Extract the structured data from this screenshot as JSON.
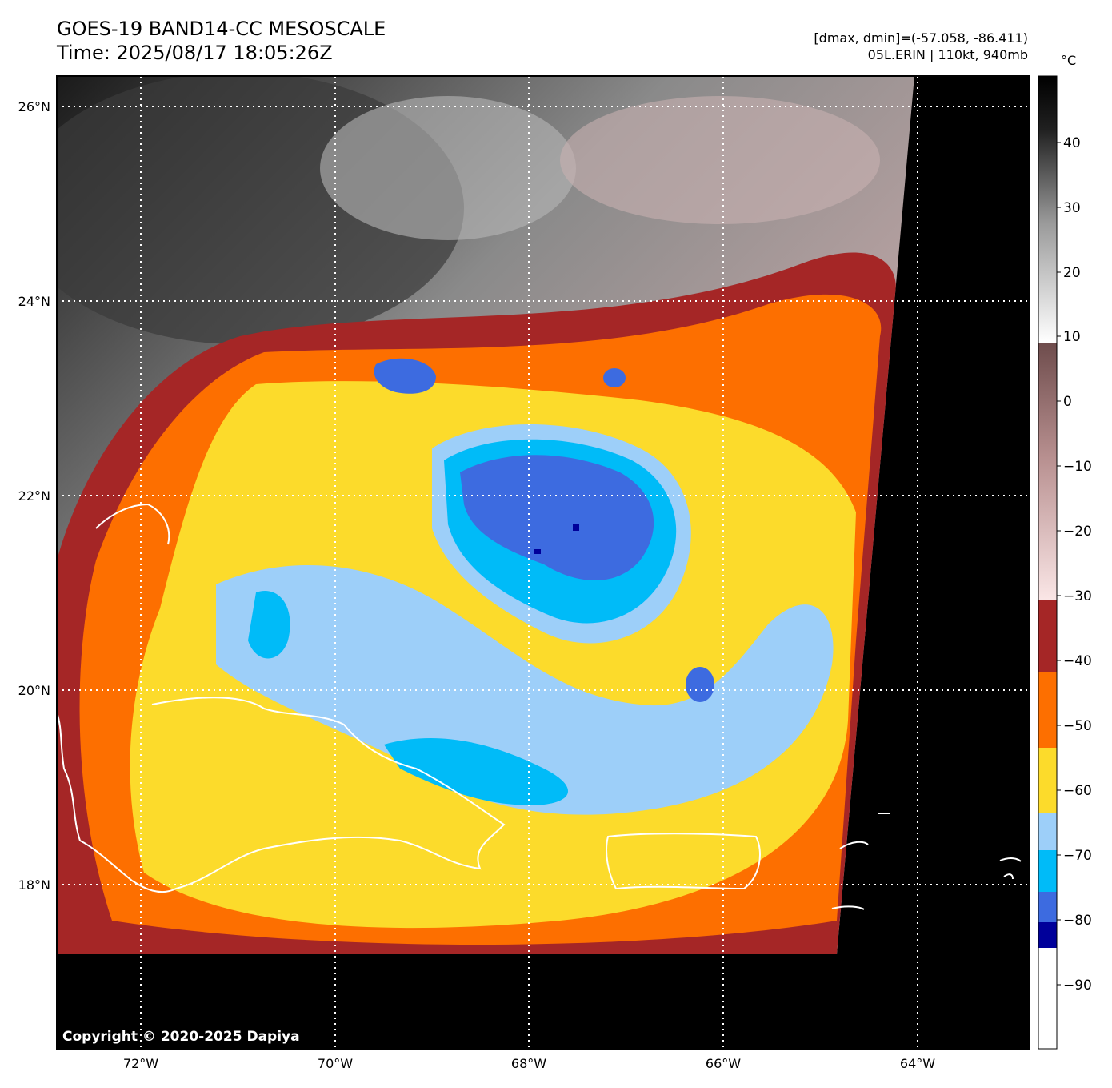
{
  "header": {
    "title_line1": "GOES-19 BAND14-CC MESOSCALE",
    "title_line2": "Time: 2025/08/17 18:05:26Z",
    "info_line1": "[dmax, dmin]=(-57.058, -86.411)",
    "info_line2": "05L.ERIN | 110kt, 940mb"
  },
  "map": {
    "lat_labels": [
      "26°N",
      "24°N",
      "22°N",
      "20°N",
      "18°N"
    ],
    "lon_labels": [
      "72°W",
      "70°W",
      "68°W",
      "66°W",
      "64°W"
    ],
    "copyright": "Copyright © 2020-2025 Dapiya"
  },
  "colorbar": {
    "unit": "°C",
    "ticks": [
      "40",
      "30",
      "20",
      "10",
      "0",
      "−10",
      "−20",
      "−30",
      "−40",
      "−50",
      "−60",
      "−70",
      "−80",
      "−90"
    ],
    "colors": {
      "gray_low": "#ffffff",
      "gray_high": "#000000",
      "brown": "#7a5555",
      "pink": "#f6dcdc",
      "darkred": "#a52626",
      "orange": "#fd6f00",
      "yellow": "#fcdb2b",
      "lightblue": "#9dcff9",
      "cyan": "#00bbf8",
      "royalblue": "#3d6be0",
      "navy": "#00009a"
    }
  }
}
